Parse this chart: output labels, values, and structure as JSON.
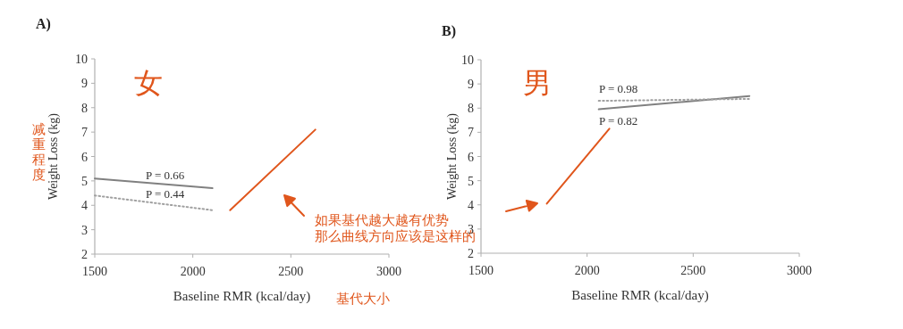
{
  "chart_data": [
    {
      "type": "line",
      "title": "A)",
      "xlabel": "Baseline RMR (kcal/day)",
      "ylabel": "Weight Loss (kg)",
      "xlim": [
        1500,
        3000
      ],
      "xticks": [
        1500,
        2000,
        2500,
        3000
      ],
      "ylim": [
        2,
        10
      ],
      "yticks": [
        2,
        3,
        4,
        5,
        6,
        7,
        8,
        9,
        10
      ],
      "grid": false,
      "marker": "none",
      "series": [
        {
          "x": [
            1500,
            2100
          ],
          "values": [
            5.1,
            4.7
          ],
          "color": "#808080",
          "line_style": "solid"
        },
        {
          "x": [
            1500,
            2100
          ],
          "values": [
            4.4,
            3.8
          ],
          "color": "#a0a0a0",
          "line_style": "dotted"
        },
        {
          "x": [
            2190,
            2625
          ],
          "values": [
            3.8,
            7.1
          ],
          "color": "#e0561c",
          "line_style": "solid"
        }
      ],
      "annotations": [
        "P = 0.66",
        "P = 0.44",
        "女",
        "减重程度",
        "如果基代越大越有优势",
        "那么曲线方向应该是这样的",
        "基代大小"
      ]
    },
    {
      "type": "line",
      "title": "B)",
      "xlabel": "Baseline RMR (kcal/day)",
      "ylabel": "Weight Loss (kg)",
      "xlim": [
        1500,
        3000
      ],
      "xticks": [
        1500,
        2000,
        2500,
        3000
      ],
      "ylim": [
        2,
        10
      ],
      "yticks": [
        2,
        3,
        4,
        5,
        6,
        7,
        8,
        9,
        10
      ],
      "grid": false,
      "marker": "none",
      "series": [
        {
          "x": [
            2055,
            2765
          ],
          "values": [
            7.95,
            8.5
          ],
          "color": "#808080",
          "line_style": "solid"
        },
        {
          "x": [
            2055,
            2765
          ],
          "values": [
            8.3,
            8.38
          ],
          "color": "#a0a0a0",
          "line_style": "dotted"
        },
        {
          "x": [
            1810,
            2105
          ],
          "values": [
            4.05,
            7.15
          ],
          "color": "#e0561c",
          "line_style": "solid"
        }
      ],
      "annotations": [
        "P = 0.98",
        "P = 0.82",
        "男"
      ]
    }
  ]
}
